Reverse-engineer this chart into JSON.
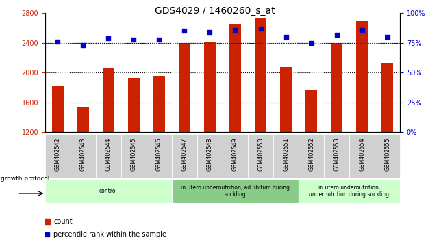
{
  "title": "GDS4029 / 1460260_s_at",
  "samples": [
    "GSM402542",
    "GSM402543",
    "GSM402544",
    "GSM402545",
    "GSM402546",
    "GSM402547",
    "GSM402548",
    "GSM402549",
    "GSM402550",
    "GSM402551",
    "GSM402552",
    "GSM402553",
    "GSM402554",
    "GSM402555"
  ],
  "counts": [
    1820,
    1540,
    2060,
    1930,
    1960,
    2400,
    2420,
    2660,
    2740,
    2080,
    1760,
    2400,
    2700,
    2130
  ],
  "percentiles": [
    76,
    73,
    79,
    78,
    78,
    85,
    84,
    86,
    87,
    80,
    75,
    82,
    86,
    80
  ],
  "ymin": 1200,
  "ymax": 2800,
  "y2min": 0,
  "y2max": 100,
  "yticks": [
    1200,
    1600,
    2000,
    2400,
    2800
  ],
  "y2ticks": [
    0,
    25,
    50,
    75,
    100
  ],
  "grid_values": [
    1600,
    2000,
    2400
  ],
  "bar_color": "#cc2200",
  "dot_color": "#0000cc",
  "percentile_line": 75,
  "groups": [
    {
      "label": "control",
      "start": 0,
      "end": 4,
      "color": "#ccffcc"
    },
    {
      "label": "in utero undernutrition, ad libitum during\nsuckling",
      "start": 5,
      "end": 9,
      "color": "#88cc88"
    },
    {
      "label": "in utero undernutrition,\nundernutrition during suckling",
      "start": 10,
      "end": 13,
      "color": "#ccffcc"
    }
  ],
  "growth_protocol_label": "growth protocol",
  "legend_count_label": "count",
  "legend_percentile_label": "percentile rank within the sample",
  "title_fontsize": 10,
  "axis_label_color_left": "#cc2200",
  "axis_label_color_right": "#0000cc",
  "fig_width": 6.28,
  "fig_height": 3.54,
  "dpi": 100
}
